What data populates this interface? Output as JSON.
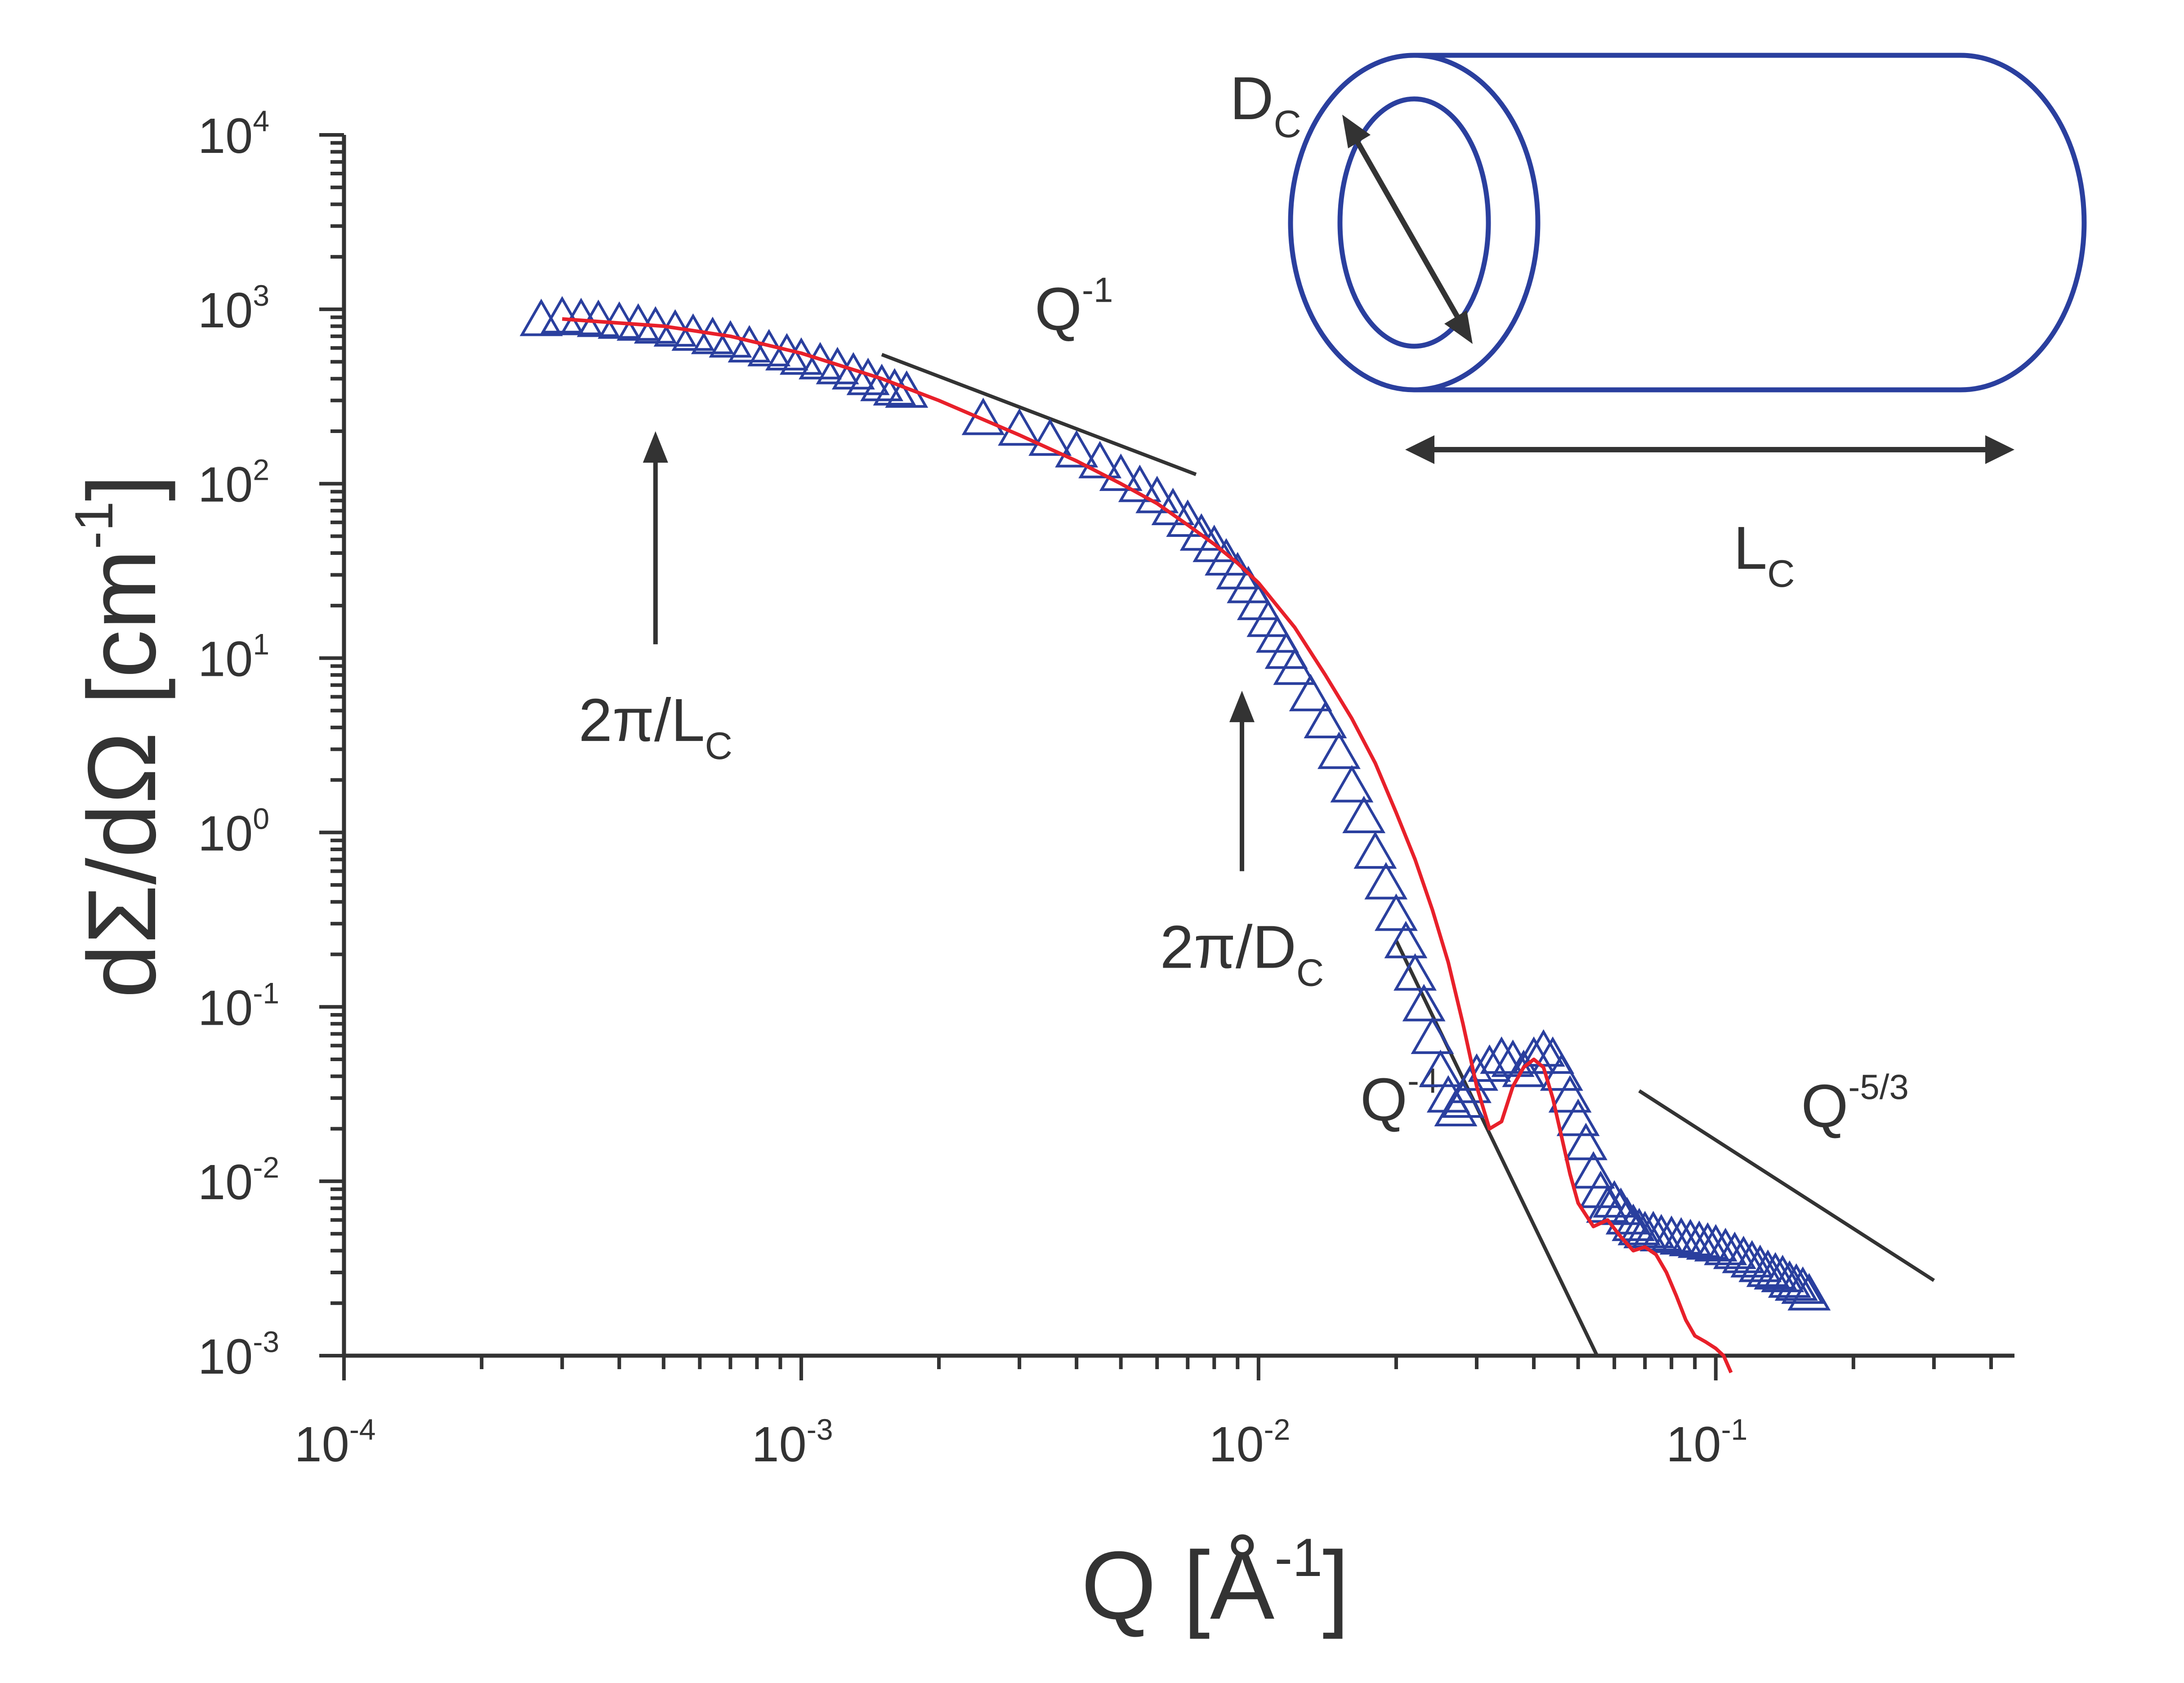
{
  "chart_data": {
    "type": "scatter",
    "x_scale": "log",
    "y_scale": "log",
    "xlim": [
      0.0001,
      0.45
    ],
    "ylim": [
      0.001,
      10000
    ],
    "x_ticks": [
      {
        "base": "10",
        "exp": "-4"
      },
      {
        "base": "10",
        "exp": "-3"
      },
      {
        "base": "10",
        "exp": "-2"
      },
      {
        "base": "10",
        "exp": "-1"
      }
    ],
    "y_ticks": [
      {
        "base": "10",
        "exp": "-3"
      },
      {
        "base": "10",
        "exp": "-2"
      },
      {
        "base": "10",
        "exp": "-1"
      },
      {
        "base": "10",
        "exp": "0"
      },
      {
        "base": "10",
        "exp": "1"
      },
      {
        "base": "10",
        "exp": "2"
      },
      {
        "base": "10",
        "exp": "3"
      },
      {
        "base": "10",
        "exp": "4"
      }
    ],
    "xlabel": {
      "main": "Q [Å",
      "sup": "-1",
      "end": "]"
    },
    "ylabel": {
      "main": "dΣ/dΩ [cm",
      "sup": "-1",
      "end": "]"
    },
    "grid": false,
    "series": [
      {
        "marker": "open-triangle",
        "color": "#2a3f9e",
        "x": [
          0.00027,
          0.0003,
          0.00033,
          0.00036,
          0.0004,
          0.00044,
          0.00048,
          0.00053,
          0.00058,
          0.00064,
          0.0007,
          0.00077,
          0.00085,
          0.00093,
          0.001,
          0.0011,
          0.0012,
          0.0013,
          0.0014,
          0.0015,
          0.0016,
          0.0017,
          0.0025,
          0.003,
          0.0035,
          0.004,
          0.0045,
          0.005,
          0.0055,
          0.006,
          0.0065,
          0.007,
          0.0075,
          0.008,
          0.0085,
          0.009,
          0.0095,
          0.01,
          0.0105,
          0.011,
          0.0115,
          0.012,
          0.013,
          0.014,
          0.015,
          0.016,
          0.017,
          0.018,
          0.019,
          0.02,
          0.021,
          0.022,
          0.023,
          0.024,
          0.025,
          0.026,
          0.027,
          0.028,
          0.029,
          0.03,
          0.032,
          0.034,
          0.036,
          0.038,
          0.04,
          0.042,
          0.044,
          0.046,
          0.048,
          0.05,
          0.052,
          0.054,
          0.056,
          0.058,
          0.06,
          0.062,
          0.064,
          0.066,
          0.068,
          0.07,
          0.073,
          0.076,
          0.08,
          0.084,
          0.088,
          0.092,
          0.096,
          0.1,
          0.105,
          0.11,
          0.115,
          0.12,
          0.125,
          0.13,
          0.135,
          0.14,
          0.145,
          0.15,
          0.155,
          0.16
        ],
        "y": [
          850,
          880,
          860,
          840,
          820,
          800,
          770,
          740,
          700,
          670,
          640,
          600,
          570,
          540,
          510,
          480,
          450,
          420,
          390,
          360,
          340,
          330,
          230,
          200,
          175,
          150,
          130,
          110,
          95,
          82,
          70,
          60,
          50,
          43,
          36,
          30,
          25,
          20,
          16,
          13,
          10.5,
          8.5,
          6.0,
          4.2,
          2.8,
          1.8,
          1.2,
          0.75,
          0.5,
          0.33,
          0.23,
          0.15,
          0.1,
          0.065,
          0.042,
          0.03,
          0.025,
          0.028,
          0.034,
          0.04,
          0.045,
          0.05,
          0.048,
          0.042,
          0.05,
          0.055,
          0.05,
          0.04,
          0.03,
          0.022,
          0.016,
          0.011,
          0.0085,
          0.007,
          0.0075,
          0.0068,
          0.006,
          0.0055,
          0.0052,
          0.005,
          0.005,
          0.0048,
          0.0047,
          0.0046,
          0.0045,
          0.0044,
          0.0043,
          0.0042,
          0.004,
          0.0038,
          0.0036,
          0.0034,
          0.0032,
          0.003,
          0.0029,
          0.0028,
          0.0026,
          0.0025,
          0.0024,
          0.0022
        ]
      },
      {
        "marker": "line",
        "color": "#e8202a",
        "x": [
          0.0003,
          0.0005,
          0.0007,
          0.001,
          0.0015,
          0.002,
          0.003,
          0.004,
          0.005,
          0.006,
          0.007,
          0.008,
          0.009,
          0.01,
          0.012,
          0.014,
          0.016,
          0.018,
          0.02,
          0.022,
          0.024,
          0.026,
          0.028,
          0.03,
          0.032,
          0.034,
          0.036,
          0.038,
          0.04,
          0.042,
          0.044,
          0.046,
          0.048,
          0.05,
          0.054,
          0.058,
          0.062,
          0.066,
          0.07,
          0.074,
          0.078,
          0.082,
          0.086,
          0.09,
          0.095,
          0.1,
          0.104,
          0.108
        ],
        "y": [
          880,
          800,
          700,
          560,
          400,
          300,
          190,
          135,
          100,
          77,
          58,
          45,
          35,
          27,
          15,
          8,
          4.5,
          2.5,
          1.3,
          0.7,
          0.36,
          0.18,
          0.08,
          0.035,
          0.02,
          0.022,
          0.035,
          0.045,
          0.05,
          0.045,
          0.03,
          0.018,
          0.011,
          0.0075,
          0.0055,
          0.006,
          0.0048,
          0.004,
          0.0042,
          0.0038,
          0.003,
          0.0022,
          0.0016,
          0.0013,
          0.0012,
          0.0011,
          0.001,
          0.0008
        ]
      }
    ],
    "slope_guides": [
      {
        "label_base": "Q",
        "label_sup": "-1",
        "x": [
          0.0015,
          0.0073
        ],
        "y": [
          550,
          113
        ]
      },
      {
        "label_base": "Q",
        "label_sup": "-4",
        "x": [
          0.02,
          0.055
        ],
        "y": [
          0.24,
          0.001
        ]
      },
      {
        "label_base": "Q",
        "label_sup": "-5/3",
        "x": [
          0.068,
          0.3
        ],
        "y": [
          0.033,
          0.0027
        ]
      }
    ],
    "annotations": [
      {
        "main": "2π/L",
        "sub": "C",
        "arrow_x": 0.00048,
        "arrow_y_from": 12,
        "arrow_y_to": 200
      },
      {
        "main": "2π/D",
        "sub": "C",
        "arrow_x": 0.0092,
        "arrow_y_from": 0.6,
        "arrow_y_to": 6.5
      }
    ],
    "inset": {
      "shape": "hollow-cylinder",
      "color": "#2a3f9e",
      "diameter_label": {
        "main": "D",
        "sub": "C"
      },
      "length_label": {
        "main": "L",
        "sub": "C"
      }
    }
  }
}
